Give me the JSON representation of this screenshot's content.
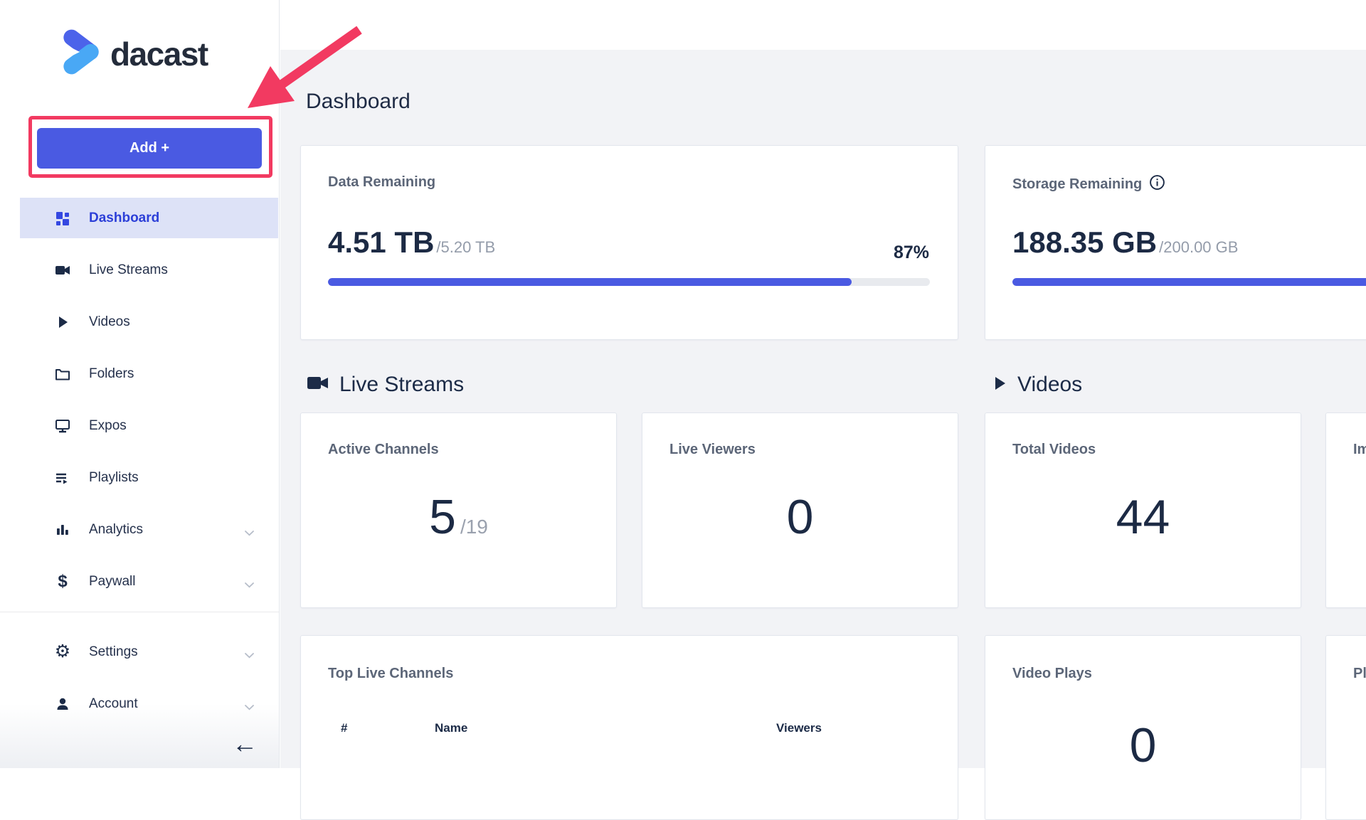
{
  "brand": {
    "logo_text": "dacast"
  },
  "colors": {
    "accent_blue": "#4a5ae2",
    "active_link_blue": "#2c3fd8",
    "active_item_bg": "#dde2f7",
    "navy_text": "#1c2a44",
    "label_gray": "#5c6678",
    "muted_gray": "#949caa",
    "annotation_pink": "#f23a61",
    "page_bg": "#f2f3f6",
    "progress_track": "#e8eaee",
    "logo_blue_top": "#4c63ea",
    "logo_blue_bottom": "#49a8f5"
  },
  "sidebar": {
    "add_button_label": "Add +",
    "items": [
      {
        "label": "Dashboard",
        "icon": "dashboard-grid-icon",
        "active": true
      },
      {
        "label": "Live Streams",
        "icon": "video-camera-icon"
      },
      {
        "label": "Videos",
        "icon": "play-icon"
      },
      {
        "label": "Folders",
        "icon": "folder-icon"
      },
      {
        "label": "Expos",
        "icon": "monitor-icon"
      },
      {
        "label": "Playlists",
        "icon": "playlist-icon"
      },
      {
        "label": "Analytics",
        "icon": "bar-chart-icon",
        "expandable": true
      },
      {
        "label": "Paywall",
        "icon": "dollar-icon",
        "expandable": true
      }
    ],
    "footer_items": [
      {
        "label": "Settings",
        "icon": "gear-icon",
        "expandable": true
      },
      {
        "label": "Account",
        "icon": "person-icon",
        "expandable": true
      }
    ],
    "collapse_arrow": "←",
    "dollar_glyph": "$",
    "gear_glyph": "⚙"
  },
  "header": {
    "title": "Dashboard"
  },
  "usage_cards": {
    "data": {
      "label": "Data Remaining",
      "value": "4.51 TB",
      "total": "/5.20 TB",
      "percent_label": "87%",
      "percent": 87
    },
    "storage": {
      "label": "Storage Remaining",
      "value": "188.35 GB",
      "total": "/200.00 GB",
      "percent": 94.2
    }
  },
  "sections": {
    "live_streams": {
      "title": "Live Streams"
    },
    "videos": {
      "title": "Videos"
    }
  },
  "stat_cards": {
    "active_channels": {
      "label": "Active Channels",
      "value": "5",
      "total": "/19"
    },
    "live_viewers": {
      "label": "Live Viewers",
      "value": "0"
    },
    "total_videos": {
      "label": "Total Videos",
      "value": "44"
    },
    "impressions_partial": {
      "label_fragment": "Im"
    },
    "video_plays": {
      "label": "Video Plays",
      "value": "0"
    },
    "plays_partial": {
      "label_fragment": "Pl"
    }
  },
  "top_live_channels": {
    "label": "Top Live Channels",
    "columns": [
      "#",
      "Name",
      "Viewers"
    ],
    "rows": []
  }
}
